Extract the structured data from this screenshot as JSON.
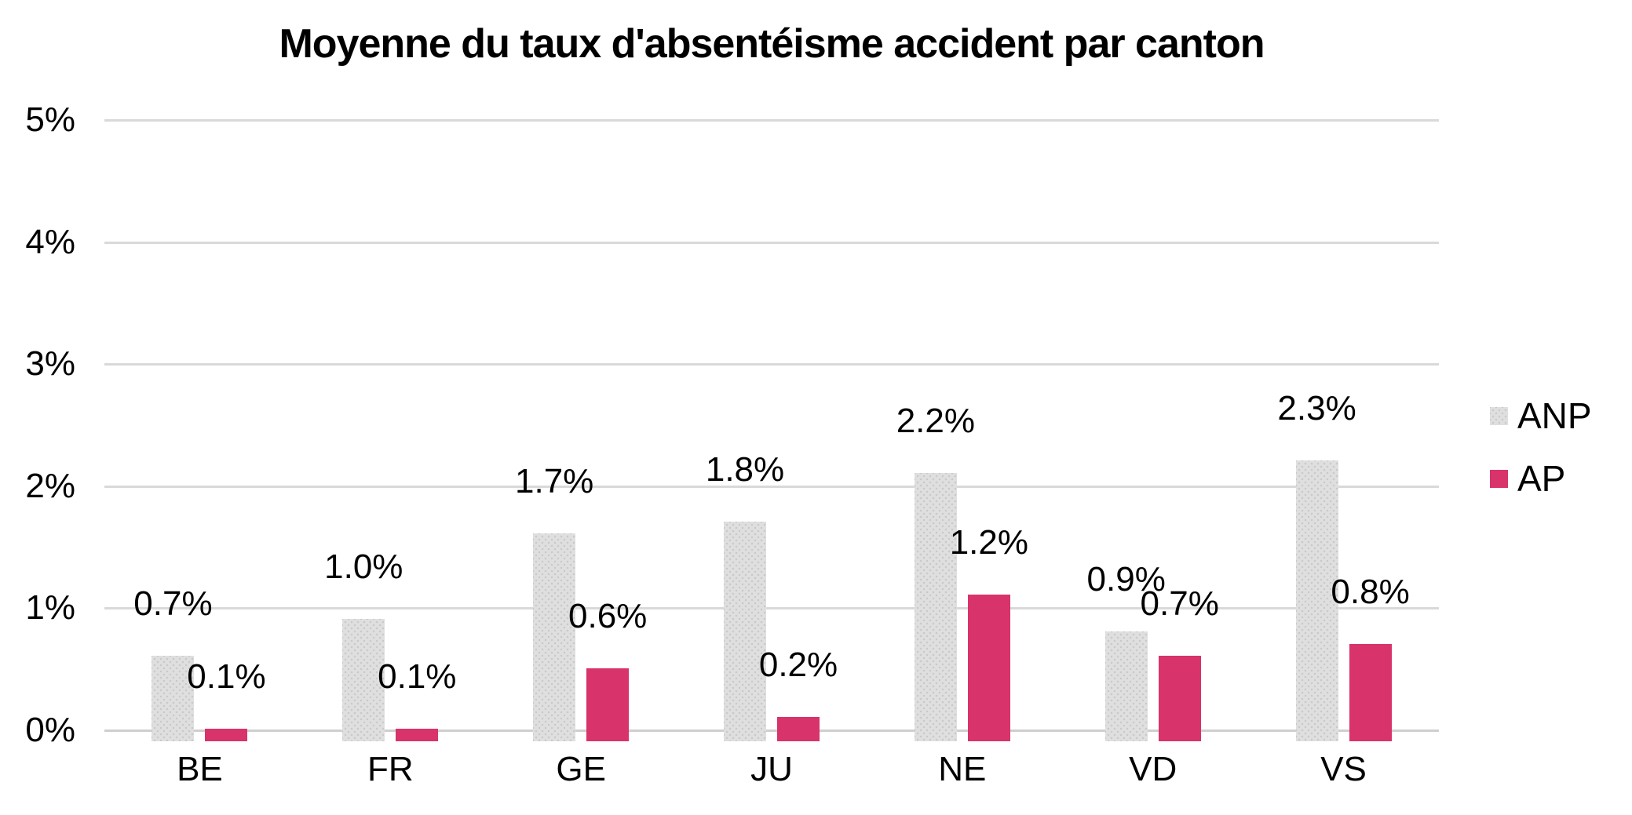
{
  "chart_data": {
    "type": "bar",
    "title": "Moyenne du taux d'absentéisme accident par canton",
    "categories": [
      "BE",
      "FR",
      "GE",
      "JU",
      "NE",
      "VD",
      "VS"
    ],
    "series": [
      {
        "name": "ANP",
        "values": [
          0.7,
          1.0,
          1.7,
          1.8,
          2.2,
          0.9,
          2.3
        ],
        "labels": [
          "0.7%",
          "1.0%",
          "1.7%",
          "1.8%",
          "2.2%",
          "0.9%",
          "2.3%"
        ]
      },
      {
        "name": "AP",
        "values": [
          0.1,
          0.1,
          0.6,
          0.2,
          1.2,
          0.7,
          0.8
        ],
        "labels": [
          "0.1%",
          "0.1%",
          "0.6%",
          "0.2%",
          "1.2%",
          "0.7%",
          "0.8%"
        ]
      }
    ],
    "xlabel": "",
    "ylabel": "",
    "ylim": [
      0,
      5
    ],
    "yticks": [
      "0%",
      "1%",
      "2%",
      "3%",
      "4%",
      "5%"
    ],
    "grid": true,
    "legend_position": "right",
    "data_labels": "outside-end"
  },
  "colors": {
    "anp_fill": "#dfdfdf",
    "anp_dot": "#c9c9c9",
    "ap_fill": "#d8336a",
    "gridline": "#d9d9d9",
    "axis_line": "#cfcfcf",
    "text": "#000000",
    "background": "#ffffff"
  }
}
